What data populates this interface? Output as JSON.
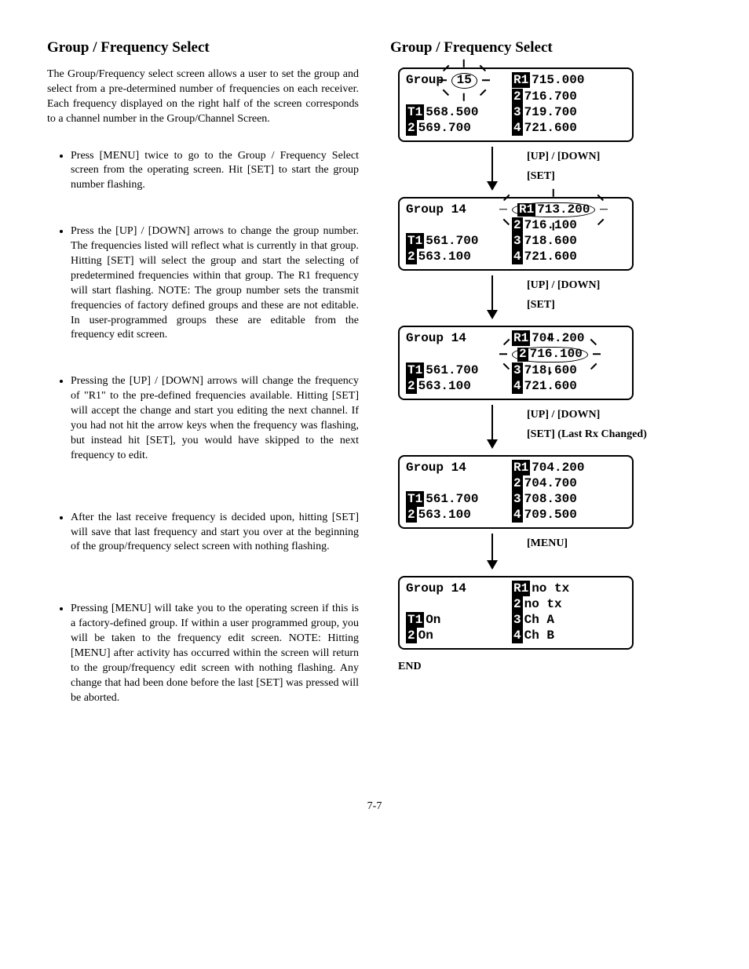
{
  "left": {
    "heading": "Group / Frequency Select",
    "intro": "The Group/Frequency select screen allows a user to set the group and select from a pre-determined number of frequencies on each receiver. Each frequency displayed on the right half of the screen corresponds to a channel number in the Group/Channel Screen.",
    "bullets": [
      "Press [MENU] twice to go to the Group / Frequency Select screen from the operating screen. Hit [SET] to start the group number flashing.",
      "Press the [UP] / [DOWN] arrows to change the group number. The frequencies listed will reflect what is currently in that group. Hitting [SET] will select the group and start the selecting of predetermined frequencies within that group. The R1 frequency will start flashing. NOTE: The group number sets the transmit frequencies of factory defined groups and these are not editable. In user-programmed groups these are editable from the frequency edit screen.",
      "Pressing the [UP] / [DOWN] arrows will change the frequency of \"R1\" to the pre-defined frequencies available. Hitting [SET] will accept the change and start you editing the next channel. If you had not hit the arrow keys when the frequency was flashing, but instead hit [SET], you would have skipped to the next frequency to edit.",
      "After the last receive frequency is decided upon, hitting [SET] will save that last frequency and start you over at the beginning of the group/frequency select screen with nothing flashing.",
      "Pressing [MENU] will take you to the operating screen if this is a factory-defined group. If within a user programmed group, you will be taken to the frequency edit screen. NOTE: Hitting [MENU] after activity has occurred within the screen will return to the group/frequency edit screen with nothing flashing. Any change that had been done before the last [SET] was pressed will be aborted."
    ]
  },
  "right": {
    "heading": "Group / Frequency Select",
    "end": "END",
    "screens": [
      {
        "group_label": "Group",
        "group_num": "15",
        "group_highlight": true,
        "t1": "568.500",
        "t2": "569.700",
        "r1": "715.000",
        "r2": "716.700",
        "r3": "719.700",
        "r4": "721.600",
        "r_highlight": 0
      },
      {
        "group_label": "Group",
        "group_num": "14",
        "group_highlight": false,
        "t1": "561.700",
        "t2": "563.100",
        "r1": "713.200",
        "r2": "716.100",
        "r3": "718.600",
        "r4": "721.600",
        "r_highlight": 1
      },
      {
        "group_label": "Group",
        "group_num": "14",
        "group_highlight": false,
        "t1": "561.700",
        "t2": "563.100",
        "r1": "704.200",
        "r2": "716.100",
        "r3": "718.600",
        "r4": "721.600",
        "r_highlight": 2
      },
      {
        "group_label": "Group",
        "group_num": "14",
        "group_highlight": false,
        "t1": "561.700",
        "t2": "563.100",
        "r1": "704.200",
        "r2": "704.700",
        "r3": "708.300",
        "r4": "709.500",
        "r_highlight": 0
      },
      {
        "group_label": "Group",
        "group_num": "14",
        "group_highlight": false,
        "t1": "On",
        "t2": "On",
        "r1": "no tx",
        "r2": "no tx",
        "r3": "Ch A",
        "r4": "Ch B",
        "r_highlight": 0
      }
    ],
    "arrows": [
      {
        "lines": [
          "[UP] / [DOWN]",
          "[SET]"
        ]
      },
      {
        "lines": [
          "[UP] / [DOWN]",
          "[SET]"
        ]
      },
      {
        "lines": [
          "[UP] / [DOWN]",
          "[SET]  (Last Rx Changed)"
        ]
      },
      {
        "lines": [
          "[MENU]"
        ]
      }
    ]
  },
  "page_number": "7-7",
  "colors": {
    "fg": "#000000",
    "bg": "#ffffff"
  }
}
